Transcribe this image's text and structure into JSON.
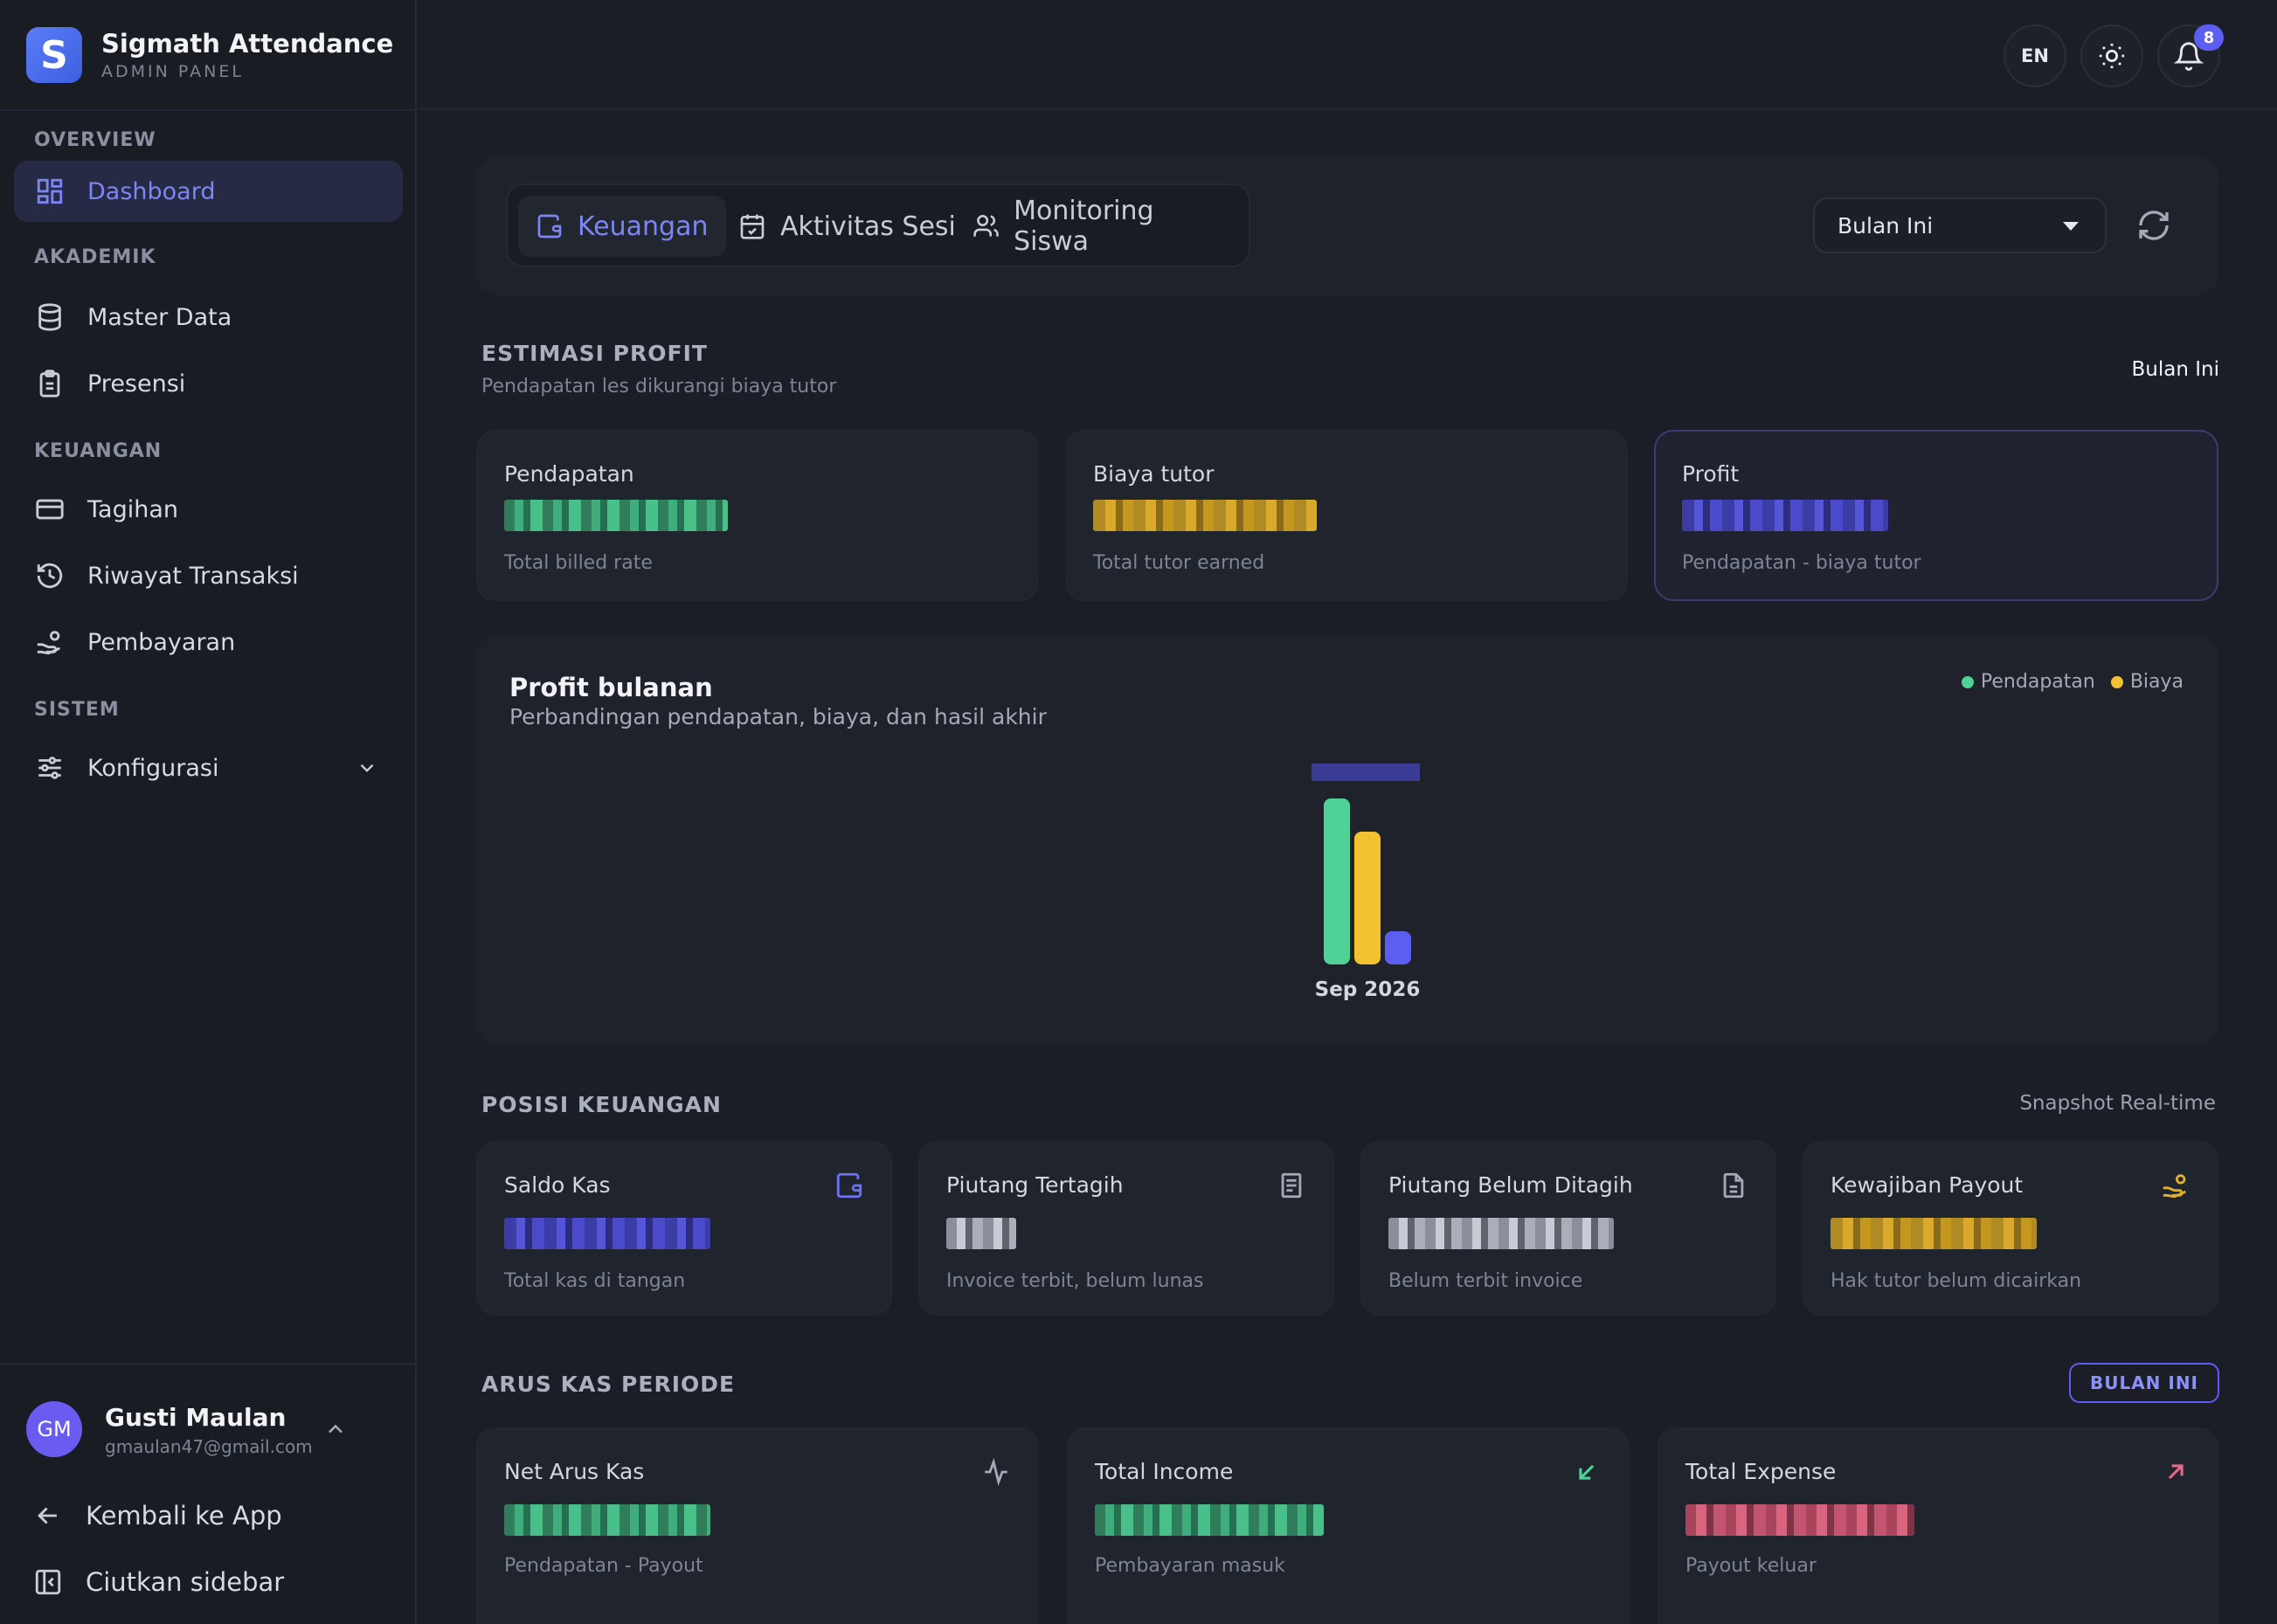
{
  "brand": {
    "logo_letter": "S",
    "name": "Sigmath Attendance",
    "subtitle": "ADMIN PANEL"
  },
  "sidebar": {
    "sections": [
      {
        "title": "OVERVIEW",
        "items": [
          {
            "label": "Dashboard",
            "icon": "dashboard-grid-icon",
            "active": true
          }
        ]
      },
      {
        "title": "AKADEMIK",
        "items": [
          {
            "label": "Master Data",
            "icon": "database-icon"
          },
          {
            "label": "Presensi",
            "icon": "clipboard-icon"
          }
        ]
      },
      {
        "title": "KEUANGAN",
        "items": [
          {
            "label": "Tagihan",
            "icon": "credit-card-icon"
          },
          {
            "label": "Riwayat Transaksi",
            "icon": "history-icon"
          },
          {
            "label": "Pembayaran",
            "icon": "hand-coins-icon"
          }
        ]
      },
      {
        "title": "SISTEM",
        "items": [
          {
            "label": "Konfigurasi",
            "icon": "sliders-icon",
            "expandable": true
          }
        ]
      }
    ],
    "user": {
      "initials": "GM",
      "name": "Gusti Maulan",
      "email": "gmaulan47@gmail.com"
    },
    "back_link": "Kembali ke App",
    "collapse_link": "Ciutkan sidebar"
  },
  "topbar": {
    "language": "EN",
    "notification_count": "8"
  },
  "tabs": [
    {
      "label": "Keuangan",
      "icon": "wallet-icon",
      "active": true
    },
    {
      "label": "Aktivitas Sesi",
      "icon": "calendar-check-icon"
    },
    {
      "label": "Monitoring Siswa",
      "icon": "users-icon"
    }
  ],
  "period_select": {
    "value": "Bulan Ini"
  },
  "estimasi": {
    "title": "ESTIMASI PROFIT",
    "subtitle": "Pendapatan les dikurangi biaya tutor",
    "period": "Bulan Ini",
    "cards": [
      {
        "label": "Pendapatan",
        "hint": "Total billed rate"
      },
      {
        "label": "Biaya tutor",
        "hint": "Total tutor earned"
      },
      {
        "label": "Profit",
        "hint": "Pendapatan - biaya tutor"
      }
    ]
  },
  "chart": {
    "title": "Profit bulanan",
    "subtitle": "Perbandingan pendapatan, biaya, dan hasil akhir",
    "legend": [
      {
        "label": "Pendapatan",
        "color": "#4fd197"
      },
      {
        "label": "Biaya",
        "color": "#f2c230"
      }
    ]
  },
  "chart_data": {
    "type": "bar",
    "categories": [
      "Sep 2026"
    ],
    "series": [
      {
        "name": "Pendapatan",
        "color": "#4fd197",
        "values": [
          1.0
        ]
      },
      {
        "name": "Biaya",
        "color": "#f2c230",
        "values": [
          0.8
        ]
      },
      {
        "color": "#5b5ef0",
        "values": [
          0.2
        ]
      }
    ],
    "xlabel": "",
    "ylabel": "",
    "grid": false,
    "legend_position": "top-right"
  },
  "posisi": {
    "title": "POSISI KEUANGAN",
    "right_label": "Snapshot Real-time",
    "cards": [
      {
        "label": "Saldo Kas",
        "hint": "Total kas di tangan",
        "icon": "wallet-icon"
      },
      {
        "label": "Piutang Tertagih",
        "hint": "Invoice terbit, belum lunas",
        "icon": "receipt-icon"
      },
      {
        "label": "Piutang Belum Ditagih",
        "hint": "Belum terbit invoice",
        "icon": "file-icon"
      },
      {
        "label": "Kewajiban Payout",
        "hint": "Hak tutor belum dicairkan",
        "icon": "hand-coins-icon"
      }
    ]
  },
  "arus": {
    "title": "ARUS KAS PERIODE",
    "button": "BULAN INI",
    "cards": [
      {
        "label": "Net Arus Kas",
        "hint": "Pendapatan - Payout",
        "icon": "activity-icon"
      },
      {
        "label": "Total Income",
        "hint": "Pembayaran masuk",
        "icon": "arrow-down-left-icon"
      },
      {
        "label": "Total Expense",
        "hint": "Payout keluar",
        "icon": "arrow-up-right-icon"
      }
    ]
  }
}
